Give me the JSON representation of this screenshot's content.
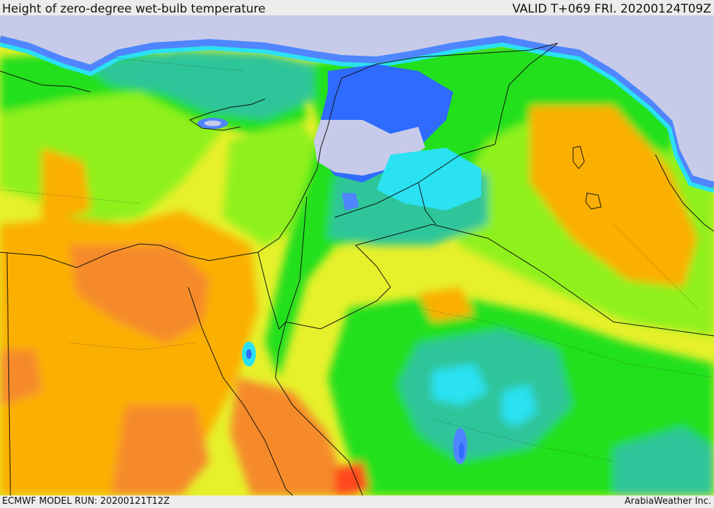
{
  "header": {
    "title": "Height of zero-degree wet-bulb temperature",
    "valid": "VALID T+069 FRI. 20200124T09Z"
  },
  "footer": {
    "model_run": "ECMWF MODEL RUN: 20200121T12Z",
    "credit": "ArabiaWeather Inc."
  },
  "colors": {
    "below_zero_sea": "#c7cbe9",
    "band_blue": "#2f6bff",
    "band_light_blue": "#4f86ff",
    "band_cyan": "#2ae2f2",
    "band_teal": "#2ec59a",
    "band_green": "#22e01c",
    "band_lime": "#8ff11a",
    "band_yellow": "#e6f02b",
    "band_orange": "#fbaf06",
    "band_dark_orange": "#f68a2c",
    "band_red": "#ff4a1e",
    "boundary_lines": "#111111"
  }
}
